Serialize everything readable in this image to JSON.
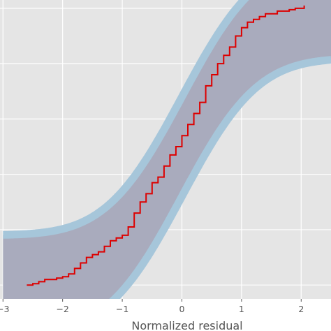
{
  "chart_data": {
    "type": "line",
    "xlabel": "Normalized residual",
    "ylabel": "",
    "xlim": [
      -3.05,
      2.5
    ],
    "ylim": [
      -0.05,
      1.03
    ],
    "x_ticks": [
      -3,
      -2,
      -1,
      0,
      1,
      2
    ],
    "x_tick_labels": [
      "−3",
      "−2",
      "−1",
      "0",
      "1",
      "2"
    ],
    "y_gridlines": [
      0.0,
      0.2,
      0.4,
      0.6,
      0.8,
      1.0
    ],
    "grid": true,
    "background": "#e5e5e5",
    "band": {
      "center": "normal_cdf",
      "half_width": 0.18,
      "fill_color": "#a9abbd",
      "edge_color": "#a6c6da"
    },
    "series": [
      {
        "style": "step",
        "color": "#dd0000",
        "x": [
          -2.6,
          -2.5,
          -2.4,
          -2.3,
          -2.2,
          -2.1,
          -2.0,
          -1.9,
          -1.8,
          -1.7,
          -1.6,
          -1.5,
          -1.4,
          -1.3,
          -1.2,
          -1.1,
          -1.0,
          -0.9,
          -0.8,
          -0.7,
          -0.6,
          -0.5,
          -0.4,
          -0.3,
          -0.2,
          -0.1,
          0.0,
          0.1,
          0.2,
          0.3,
          0.4,
          0.5,
          0.6,
          0.7,
          0.8,
          0.9,
          1.0,
          1.1,
          1.2,
          1.3,
          1.4,
          1.5,
          1.6,
          1.7,
          1.8,
          1.9,
          2.0,
          2.05
        ],
        "y": [
          0.0,
          0.005,
          0.012,
          0.02,
          0.02,
          0.025,
          0.03,
          0.04,
          0.06,
          0.08,
          0.1,
          0.11,
          0.12,
          0.14,
          0.16,
          0.17,
          0.18,
          0.21,
          0.26,
          0.3,
          0.33,
          0.37,
          0.39,
          0.43,
          0.47,
          0.5,
          0.54,
          0.58,
          0.62,
          0.66,
          0.72,
          0.76,
          0.8,
          0.83,
          0.86,
          0.9,
          0.93,
          0.95,
          0.96,
          0.97,
          0.98,
          0.98,
          0.99,
          0.99,
          0.995,
          1.0,
          1.0,
          1.01
        ]
      }
    ]
  }
}
